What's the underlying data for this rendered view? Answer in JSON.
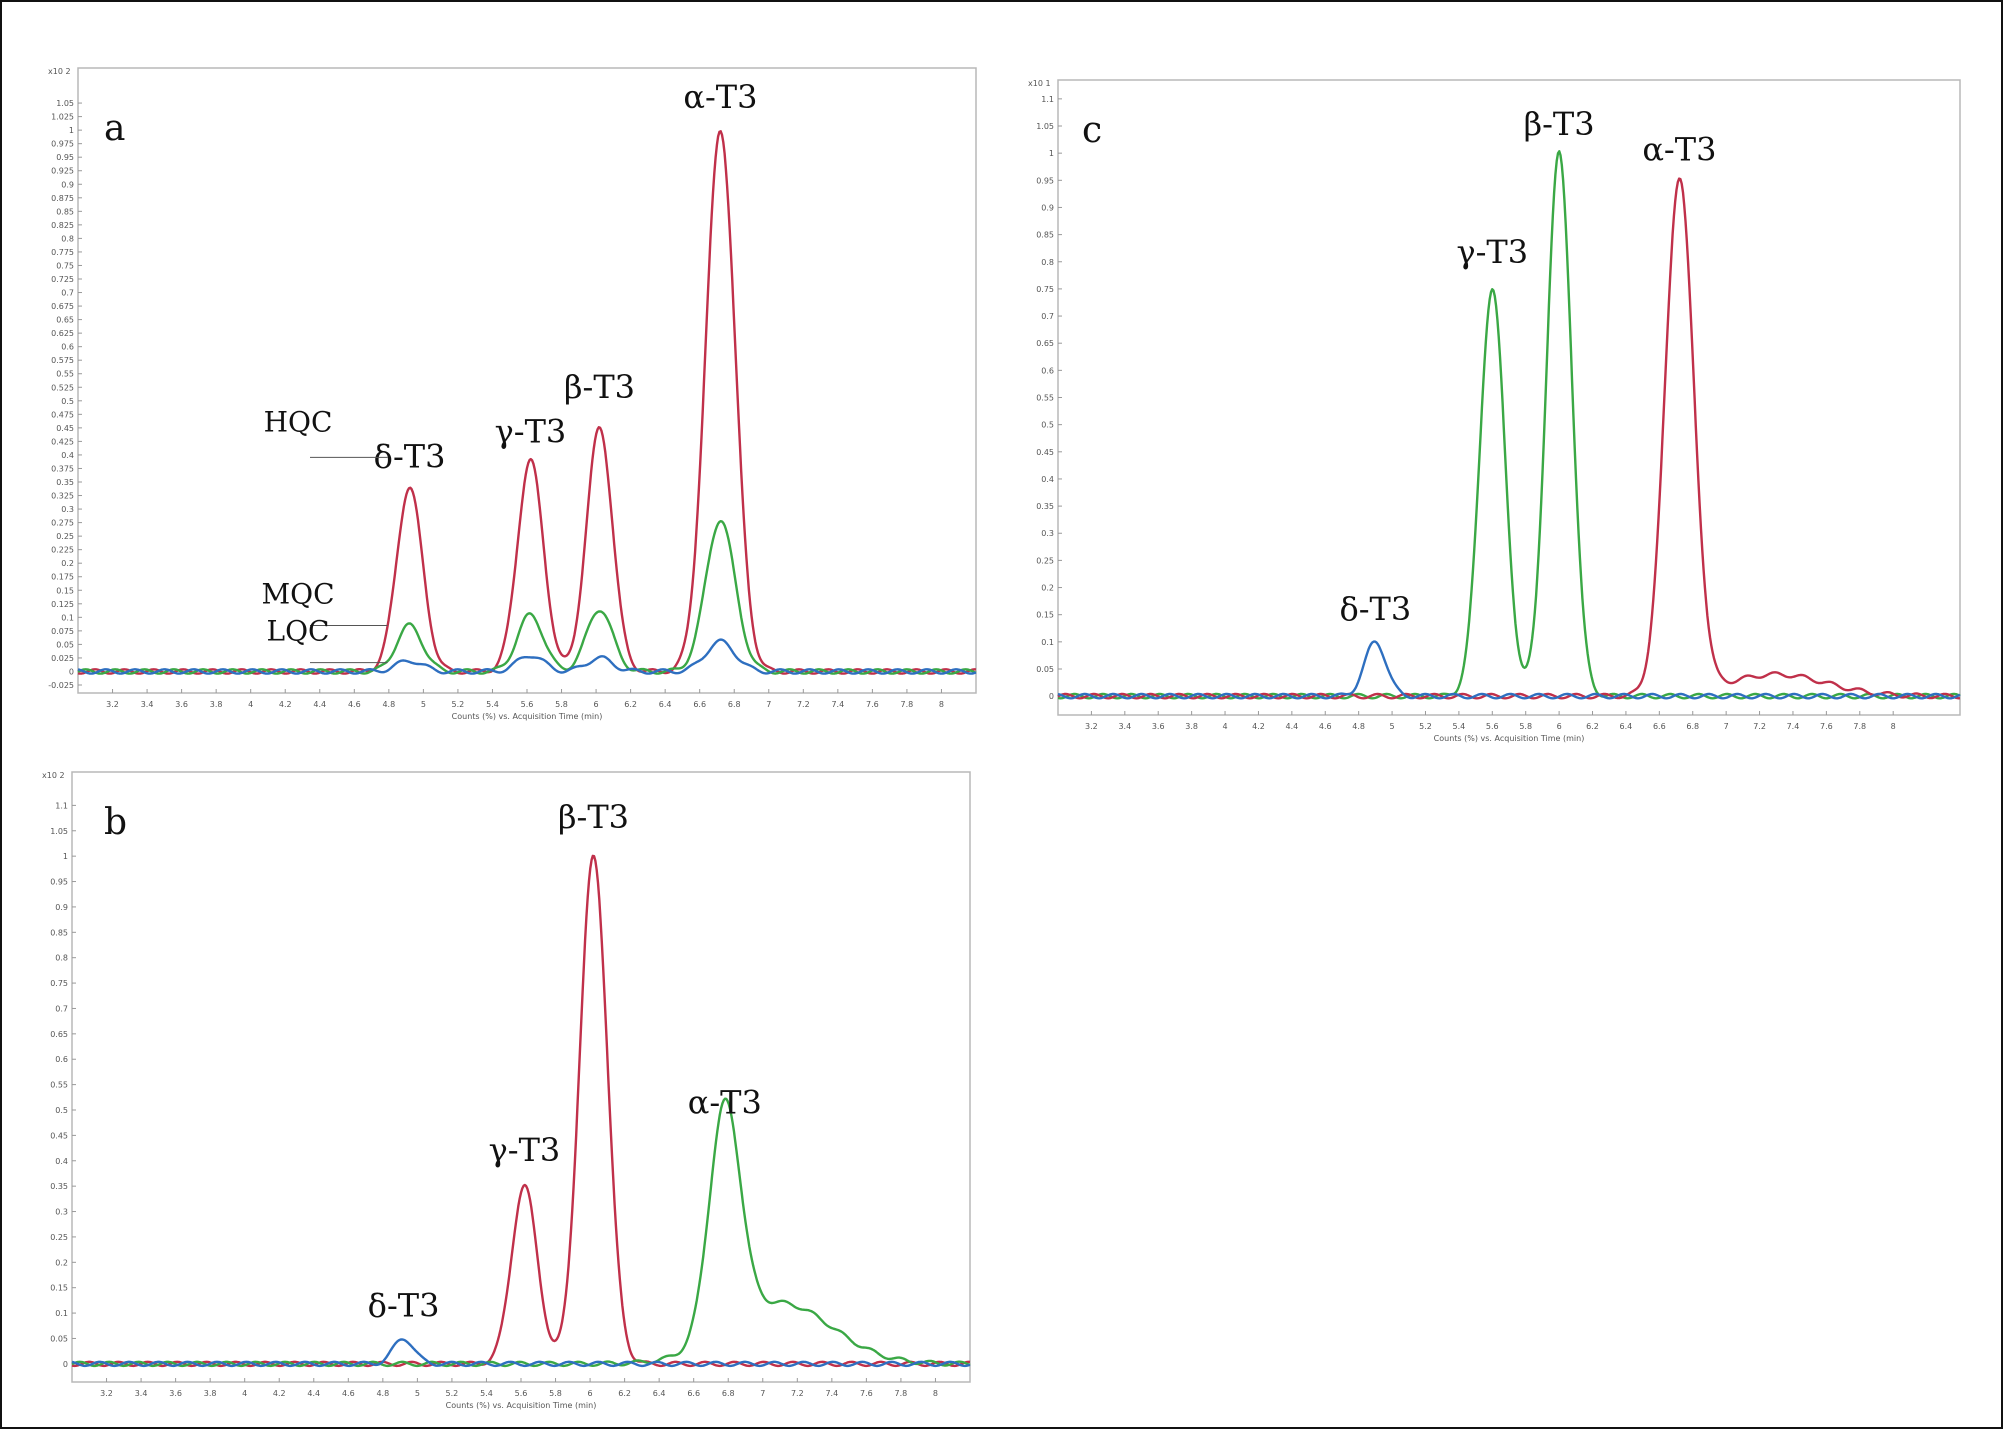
{
  "chart_data": [
    {
      "type": "line",
      "panel_label": "a",
      "xlabel": "Counts (%) vs. Acquisition Time (min)",
      "ylabel_scale": "x10 2",
      "xlim": [
        3.0,
        8.2
      ],
      "ylim": [
        -0.025,
        1.1
      ],
      "x_ticks": [
        "3.2",
        "3.4",
        "3.6",
        "3.8",
        "4",
        "4.2",
        "4.4",
        "4.6",
        "4.8",
        "5",
        "5.2",
        "5.4",
        "5.6",
        "5.8",
        "6",
        "6.2",
        "6.4",
        "6.6",
        "6.8",
        "7",
        "7.2",
        "7.4",
        "7.6",
        "7.8",
        "8"
      ],
      "y_ticks": [
        "-0.025",
        "0",
        "0.025",
        "0.05",
        "0.075",
        "0.1",
        "0.125",
        "0.15",
        "0.175",
        "0.2",
        "0.225",
        "0.25",
        "0.275",
        "0.3",
        "0.325",
        "0.35",
        "0.375",
        "0.4",
        "0.425",
        "0.45",
        "0.475",
        "0.5",
        "0.525",
        "0.55",
        "0.575",
        "0.6",
        "0.625",
        "0.65",
        "0.675",
        "0.7",
        "0.725",
        "0.75",
        "0.775",
        "0.8",
        "0.825",
        "0.85",
        "0.875",
        "0.9",
        "0.925",
        "0.95",
        "0.975",
        "1",
        "1.025",
        "1.05"
      ],
      "series": [
        {
          "name": "HQC",
          "color": "#c0304a",
          "peaks": [
            {
              "x": 4.92,
              "y": 0.34,
              "w": 0.075
            },
            {
              "x": 5.62,
              "y": 0.39,
              "w": 0.075
            },
            {
              "x": 6.02,
              "y": 0.45,
              "w": 0.075
            },
            {
              "x": 6.72,
              "y": 1.0,
              "w": 0.085
            }
          ]
        },
        {
          "name": "MQC",
          "color": "#3aa845",
          "peaks": [
            {
              "x": 4.92,
              "y": 0.085,
              "w": 0.075
            },
            {
              "x": 5.62,
              "y": 0.105,
              "w": 0.075
            },
            {
              "x": 6.02,
              "y": 0.115,
              "w": 0.075
            },
            {
              "x": 6.72,
              "y": 0.28,
              "w": 0.085
            }
          ]
        },
        {
          "name": "LQC",
          "color": "#2e6fc0",
          "peaks": [
            {
              "x": 4.92,
              "y": 0.02,
              "w": 0.075
            },
            {
              "x": 5.62,
              "y": 0.03,
              "w": 0.075
            },
            {
              "x": 6.02,
              "y": 0.025,
              "w": 0.075
            },
            {
              "x": 6.72,
              "y": 0.055,
              "w": 0.085
            }
          ]
        }
      ],
      "peak_labels": [
        {
          "text": "δ-T3",
          "x": 4.92,
          "y": 0.34
        },
        {
          "text": "γ-T3",
          "x": 5.62,
          "y": 0.39
        },
        {
          "text": "β-T3",
          "x": 6.02,
          "y": 0.45
        },
        {
          "text": "α-T3",
          "x": 6.72,
          "y": 1.0
        }
      ],
      "qc_labels": [
        {
          "text": "HQC",
          "series": "HQC"
        },
        {
          "text": "MQC",
          "series": "MQC"
        },
        {
          "text": "LQC",
          "series": "LQC"
        }
      ]
    },
    {
      "type": "line",
      "panel_label": "b",
      "xlabel": "Counts (%) vs. Acquisition Time (min)",
      "ylabel_scale": "x10 2",
      "xlim": [
        3.0,
        8.2
      ],
      "ylim": [
        -0.02,
        1.15
      ],
      "x_ticks": [
        "3.2",
        "3.4",
        "3.6",
        "3.8",
        "4",
        "4.2",
        "4.4",
        "4.6",
        "4.8",
        "5",
        "5.2",
        "5.4",
        "5.6",
        "5.8",
        "6",
        "6.2",
        "6.4",
        "6.6",
        "6.8",
        "7",
        "7.2",
        "7.4",
        "7.6",
        "7.8",
        "8"
      ],
      "y_ticks": [
        "0",
        "0.05",
        "0.1",
        "0.15",
        "0.2",
        "0.25",
        "0.3",
        "0.35",
        "0.4",
        "0.45",
        "0.5",
        "0.55",
        "0.6",
        "0.65",
        "0.7",
        "0.75",
        "0.8",
        "0.85",
        "0.9",
        "0.95",
        "1",
        "1.05",
        "1.1"
      ],
      "series": [
        {
          "color": "#c0304a",
          "peaks": [
            {
              "x": 5.62,
              "y": 0.35,
              "w": 0.075
            },
            {
              "x": 6.02,
              "y": 1.0,
              "w": 0.08
            }
          ]
        },
        {
          "color": "#3aa845",
          "peaks": [
            {
              "x": 6.78,
              "y": 0.45,
              "w": 0.09
            },
            {
              "x": 7.1,
              "y": 0.12,
              "w": 0.3
            }
          ]
        },
        {
          "color": "#2e6fc0",
          "peaks": [
            {
              "x": 4.92,
              "y": 0.05,
              "w": 0.06
            }
          ]
        }
      ],
      "peak_labels": [
        {
          "text": "δ-T3",
          "x": 4.92,
          "y": 0.05
        },
        {
          "text": "γ-T3",
          "x": 5.62,
          "y": 0.35
        },
        {
          "text": "β-T3",
          "x": 6.02,
          "y": 1.0
        },
        {
          "text": "α-T3",
          "x": 6.78,
          "y": 0.45
        }
      ]
    },
    {
      "type": "line",
      "panel_label": "c",
      "xlabel": "Counts (%) vs. Acquisition Time (min)",
      "ylabel_scale": "x10 1",
      "xlim": [
        3.0,
        8.4
      ],
      "ylim": [
        -0.02,
        1.12
      ],
      "x_ticks": [
        "3.2",
        "3.4",
        "3.6",
        "3.8",
        "4",
        "4.2",
        "4.4",
        "4.6",
        "4.8",
        "5",
        "5.2",
        "5.4",
        "5.6",
        "5.8",
        "6",
        "6.2",
        "6.4",
        "6.6",
        "6.8",
        "7",
        "7.2",
        "7.4",
        "7.6",
        "7.8",
        "8"
      ],
      "y_ticks": [
        "0",
        "0.05",
        "0.1",
        "0.15",
        "0.2",
        "0.25",
        "0.3",
        "0.35",
        "0.4",
        "0.45",
        "0.5",
        "0.55",
        "0.6",
        "0.65",
        "0.7",
        "0.75",
        "0.8",
        "0.85",
        "0.9",
        "0.95",
        "1",
        "1.05",
        "1.1"
      ],
      "series": [
        {
          "color": "#3aa845",
          "peaks": [
            {
              "x": 5.6,
              "y": 0.75,
              "w": 0.075
            },
            {
              "x": 6.0,
              "y": 1.0,
              "w": 0.075
            }
          ]
        },
        {
          "color": "#c0304a",
          "peaks": [
            {
              "x": 6.72,
              "y": 0.95,
              "w": 0.085
            },
            {
              "x": 7.3,
              "y": 0.04,
              "w": 0.3
            }
          ]
        },
        {
          "color": "#2e6fc0",
          "peaks": [
            {
              "x": 4.9,
              "y": 0.1,
              "w": 0.065
            }
          ]
        }
      ],
      "peak_labels": [
        {
          "text": "δ-T3",
          "x": 4.9,
          "y": 0.1
        },
        {
          "text": "γ-T3",
          "x": 5.6,
          "y": 0.75
        },
        {
          "text": "β-T3",
          "x": 6.0,
          "y": 1.0
        },
        {
          "text": "α-T3",
          "x": 6.72,
          "y": 0.95
        }
      ]
    }
  ]
}
